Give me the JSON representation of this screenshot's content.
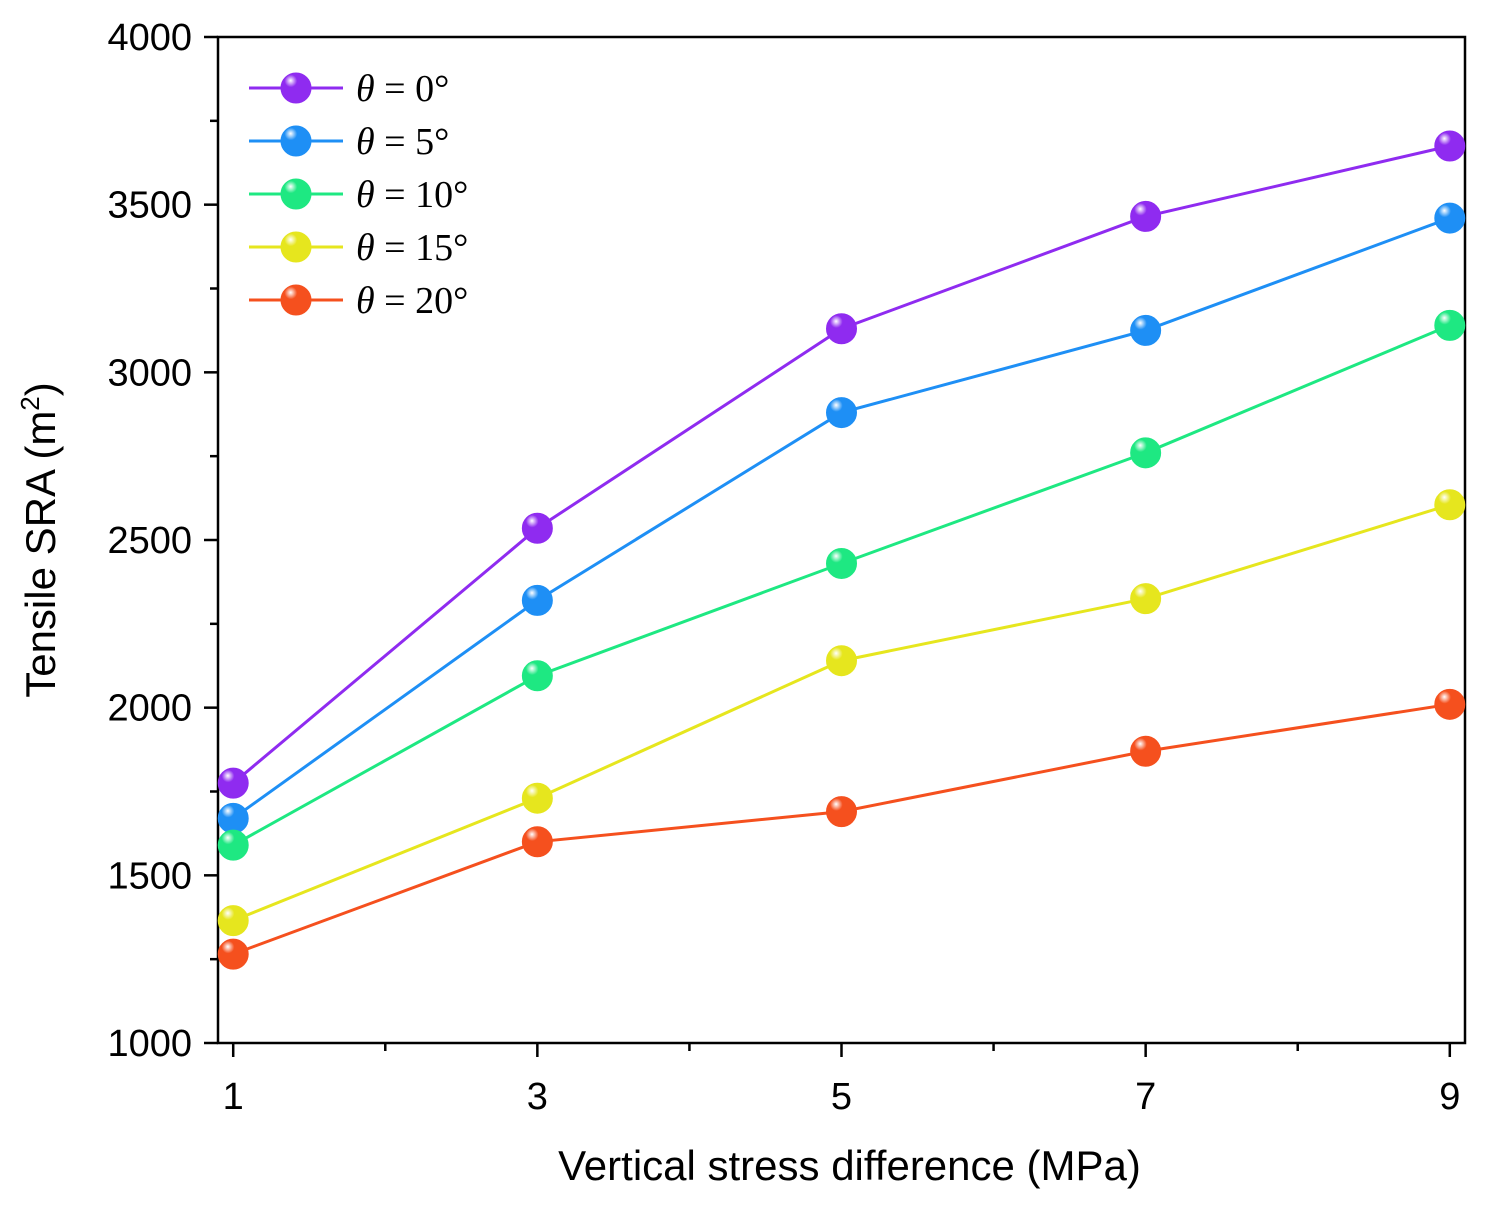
{
  "chart_data": {
    "type": "line",
    "title": "",
    "xlabel": "Vertical stress difference (MPa)",
    "ylabel": "Tensile SRA (m",
    "ylabel_sup": "2",
    "ylabel_close": ")",
    "x": [
      1,
      3,
      5,
      7,
      9
    ],
    "x_ticks": [
      1,
      3,
      5,
      7,
      9
    ],
    "x_tick_labels": [
      "1",
      "3",
      "5",
      "7",
      "9"
    ],
    "xlim": [
      0.9,
      9.1
    ],
    "ylim": [
      1000,
      4000
    ],
    "y_ticks": [
      1000,
      1500,
      2000,
      2500,
      3000,
      3500,
      4000
    ],
    "y_tick_labels": [
      "1000",
      "1500",
      "2000",
      "2500",
      "3000",
      "3500",
      "4000"
    ],
    "grid": false,
    "legend_position": "top-left",
    "series": [
      {
        "name": "θ = 0°",
        "symbol": "θ",
        "rest": " = 0°",
        "color": "#8f2bf0",
        "values": [
          1775,
          2535,
          3130,
          3465,
          3675
        ]
      },
      {
        "name": "θ = 5°",
        "symbol": "θ",
        "rest": " = 5°",
        "color": "#1e8ff5",
        "values": [
          1670,
          2320,
          2880,
          3125,
          3460
        ]
      },
      {
        "name": "θ = 10°",
        "symbol": "θ",
        "rest": " = 10°",
        "color": "#1ee882",
        "values": [
          1590,
          2095,
          2430,
          2760,
          3140
        ]
      },
      {
        "name": "θ = 15°",
        "symbol": "θ",
        "rest": " = 15°",
        "color": "#e6e61e",
        "values": [
          1365,
          1730,
          2140,
          2325,
          2605
        ]
      },
      {
        "name": "θ = 20°",
        "symbol": "θ",
        "rest": " = 20°",
        "color": "#f5501e",
        "values": [
          1265,
          1600,
          1690,
          1870,
          2010
        ]
      }
    ]
  }
}
